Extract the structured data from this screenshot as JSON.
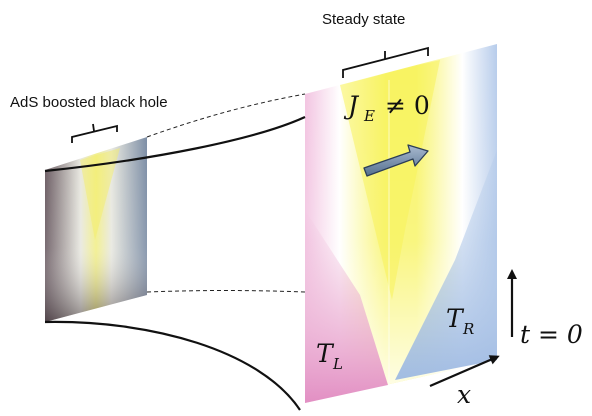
{
  "labels": {
    "bulk": "AdS boosted black hole",
    "steady": "Steady state"
  },
  "math": {
    "je_base": "J",
    "je_sub": "E",
    "je_rel": "≠ 0",
    "tl_base": "T",
    "tl_sub": "L",
    "tr_base": "T",
    "tr_sub": "R",
    "time": "t = 0",
    "space": "x"
  },
  "colors": {
    "left_reservoir": "#e9a6cf",
    "right_reservoir": "#a9c3e6",
    "steady_region": "#f6f35a",
    "current_arrow": "#6a84a8",
    "bulk_dark": "#3a2e33",
    "bulk_blue": "#7d8ea6"
  }
}
